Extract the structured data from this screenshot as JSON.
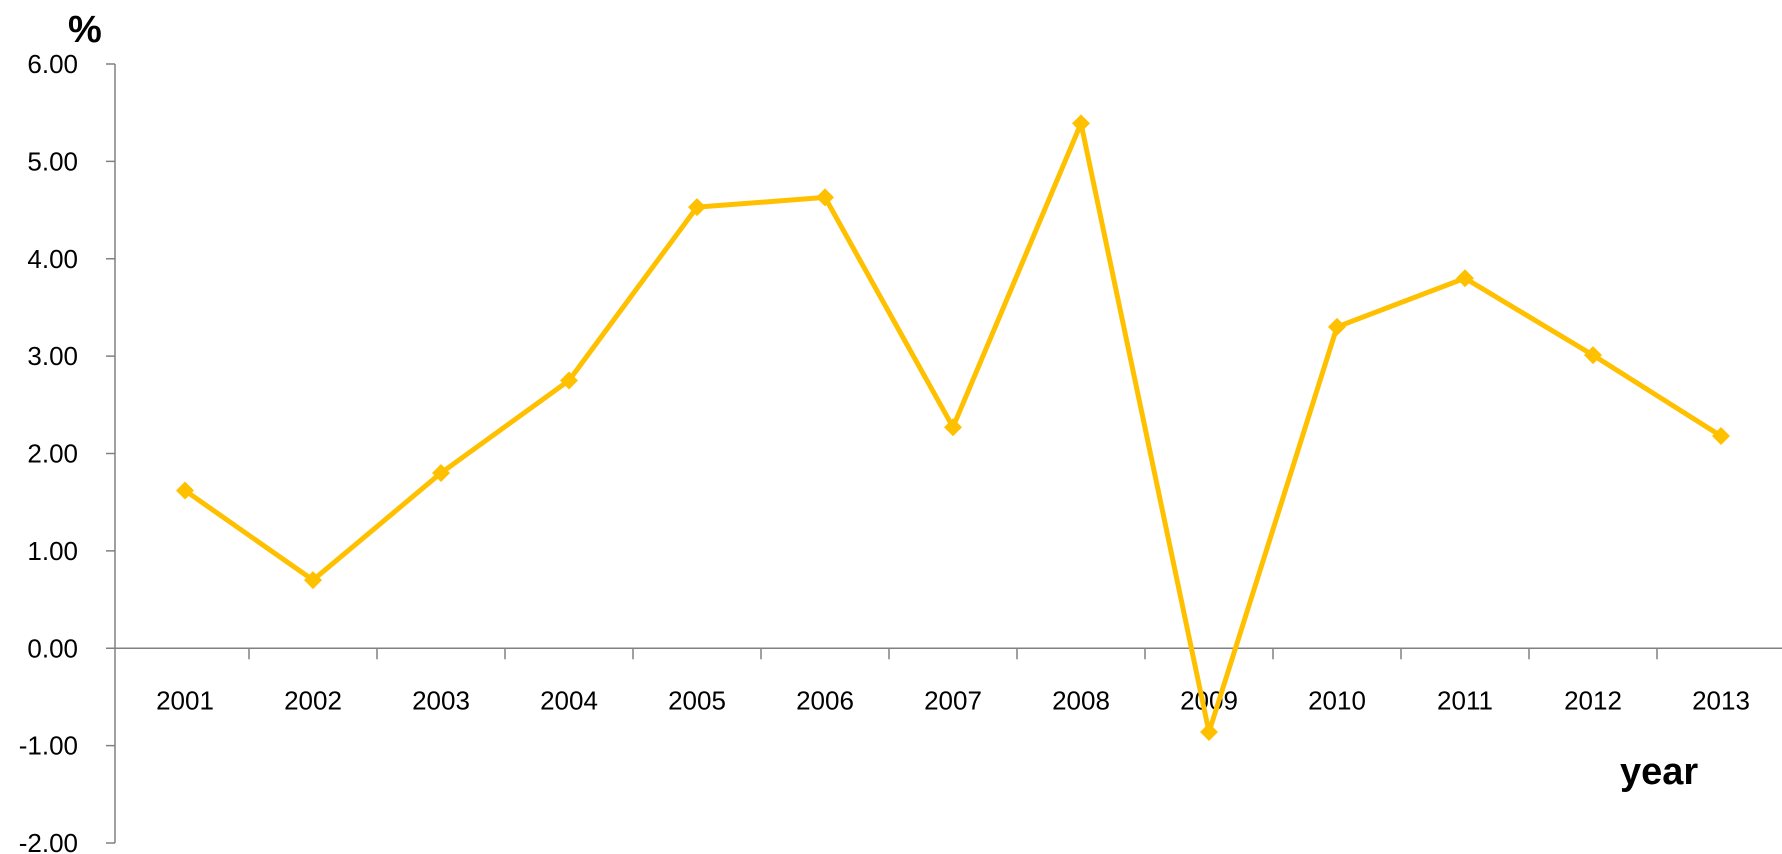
{
  "chart_data": {
    "type": "line",
    "title": "",
    "xlabel": "year",
    "ylabel": "%",
    "x": [
      "2001",
      "2002",
      "2003",
      "2004",
      "2005",
      "2006",
      "2007",
      "2008",
      "2009",
      "2010",
      "2011",
      "2012",
      "2013"
    ],
    "y_tick_labels": [
      "6.00",
      "5.00",
      "4.00",
      "3.00",
      "2.00",
      "1.00",
      "0.00",
      "-1.00",
      "-2.00"
    ],
    "ylim": [
      -2,
      6
    ],
    "grid": false,
    "legend": "none",
    "series": [
      {
        "values": [
          1.62,
          0.7,
          1.8,
          2.75,
          4.53,
          4.63,
          2.27,
          5.39,
          -0.86,
          3.3,
          3.8,
          3.01,
          2.18
        ],
        "color": "#FFC000",
        "marker": "diamond"
      }
    ]
  },
  "colors": {
    "axis": "#808080",
    "series": "#FFC000"
  }
}
